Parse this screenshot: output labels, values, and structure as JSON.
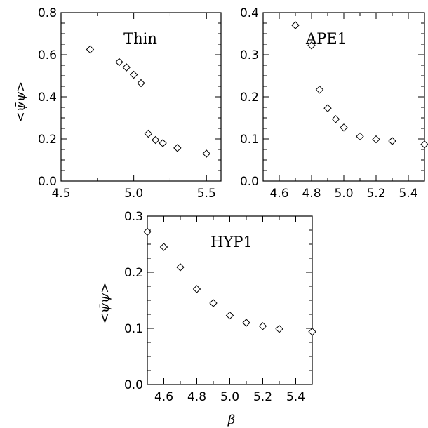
{
  "chart_data": [
    {
      "type": "scatter",
      "title": "Thin",
      "xlabel": "",
      "ylabel": "<ψ̄ψ>",
      "xlim": [
        4.5,
        5.6
      ],
      "ylim": [
        0.0,
        0.8
      ],
      "xticks": [
        4.5,
        5.0,
        5.5
      ],
      "xtick_labels": [
        "4.5",
        "5.0",
        "5.5"
      ],
      "yticks": [
        0.0,
        0.2,
        0.4,
        0.6,
        0.8
      ],
      "ytick_labels": [
        "0.0",
        "0.2",
        "0.4",
        "0.6",
        "0.8"
      ],
      "marker": "diamond",
      "x": [
        4.7,
        4.9,
        4.95,
        5.0,
        5.05,
        5.1,
        5.15,
        5.2,
        5.3,
        5.5
      ],
      "y": [
        0.625,
        0.565,
        0.54,
        0.505,
        0.465,
        0.225,
        0.195,
        0.18,
        0.157,
        0.13
      ]
    },
    {
      "type": "scatter",
      "title": "APE1",
      "xlabel": "",
      "ylabel": "",
      "xlim": [
        4.5,
        5.5
      ],
      "ylim": [
        0.0,
        0.4
      ],
      "xticks": [
        4.6,
        4.8,
        5.0,
        5.2,
        5.4
      ],
      "xtick_labels": [
        "4.6",
        "4.8",
        "5.0",
        "5.2",
        "5.4"
      ],
      "yticks": [
        0.0,
        0.1,
        0.2,
        0.3,
        0.4
      ],
      "ytick_labels": [
        "0.0",
        "0.1",
        "0.2",
        "0.3",
        "0.4"
      ],
      "marker": "diamond",
      "x": [
        4.7,
        4.8,
        4.85,
        4.9,
        4.95,
        5.0,
        5.1,
        5.2,
        5.3,
        5.5
      ],
      "y": [
        0.37,
        0.322,
        0.217,
        0.173,
        0.147,
        0.127,
        0.106,
        0.099,
        0.095,
        0.087
      ]
    },
    {
      "type": "scatter",
      "title": "HYP1",
      "xlabel": "β",
      "ylabel": "<ψ̄ψ>",
      "xlim": [
        4.5,
        5.5
      ],
      "ylim": [
        0.0,
        0.3
      ],
      "xticks": [
        4.6,
        4.8,
        5.0,
        5.2,
        5.4
      ],
      "xtick_labels": [
        "4.6",
        "4.8",
        "5.0",
        "5.2",
        "5.4"
      ],
      "yticks": [
        0.0,
        0.1,
        0.2,
        0.3
      ],
      "ytick_labels": [
        "0.0",
        "0.1",
        "0.2",
        "0.3"
      ],
      "marker": "diamond",
      "x": [
        4.5,
        4.6,
        4.7,
        4.8,
        4.9,
        5.0,
        5.1,
        5.2,
        5.3,
        5.5
      ],
      "y": [
        0.272,
        0.245,
        0.209,
        0.17,
        0.145,
        0.123,
        0.11,
        0.104,
        0.099,
        0.094
      ]
    }
  ]
}
